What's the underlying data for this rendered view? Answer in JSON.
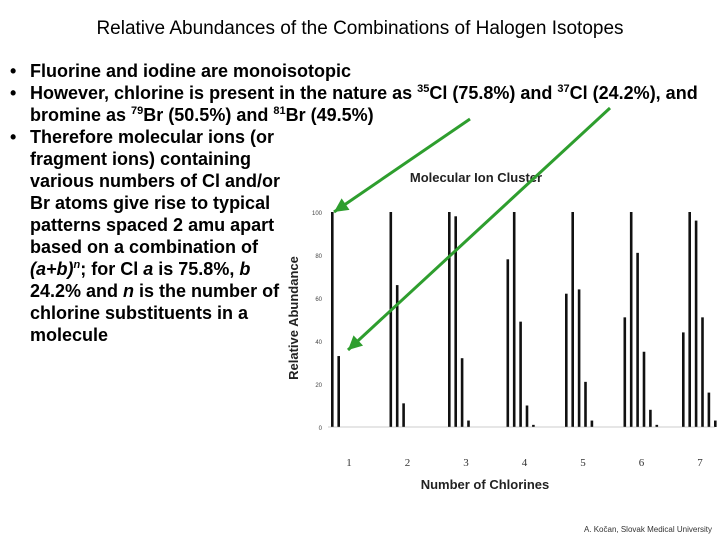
{
  "slide": {
    "title": "Relative Abundances of the Combinations of Halogen Isotopes",
    "bullet1": "Fluorine and iodine are monoisotopic",
    "bullet2_pre": "However, chlorine is present in the nature as ",
    "cl35_mass": "35",
    "cl35_text": "Cl (75.8%) and ",
    "cl37_mass": "37",
    "cl37_text": "Cl (24.2%), and bromine as ",
    "br79_mass": "79",
    "br79_text": "Br (50.5%) and ",
    "br81_mass": "81",
    "br81_text": "Br (49.5%)",
    "bullet3_a": "Therefore molecular ions (or fragment ions) containing various numbers of Cl and/or Br atoms give rise to typical patterns spaced 2 amu apart based on a combination of ",
    "bullet3_formula": "(a+b)",
    "bullet3_exp": "n",
    "bullet3_b": "; for Cl ",
    "var_a": "a",
    "bullet3_c": " is 75.8%, ",
    "var_b": "b",
    "bullet3_d": " 24.2% and ",
    "var_n": "n",
    "bullet3_e": " is the number of chlorine substituents in a molecule",
    "credit": "A. Kočan, Slovak Medical University"
  },
  "colors": {
    "arrow": "#2e9e2e",
    "bars": "#111111"
  },
  "chart_data": {
    "type": "bar",
    "title": "Molecular Ion Cluster",
    "xlabel": "Number of Chlorines",
    "ylabel": "Relative Abundance",
    "ylim": [
      0,
      100
    ],
    "yticks": [
      "0",
      "20",
      "40",
      "60",
      "80",
      "100"
    ],
    "groups": [
      {
        "label": "1",
        "values": [
          100,
          33
        ]
      },
      {
        "label": "2",
        "values": [
          100,
          66,
          11
        ]
      },
      {
        "label": "3",
        "values": [
          100,
          98,
          32,
          3
        ]
      },
      {
        "label": "4",
        "values": [
          78,
          100,
          49,
          10,
          1
        ]
      },
      {
        "label": "5",
        "values": [
          62,
          100,
          64,
          21,
          3
        ]
      },
      {
        "label": "6",
        "values": [
          51,
          100,
          81,
          35,
          8,
          1
        ]
      },
      {
        "label": "7",
        "values": [
          44,
          100,
          96,
          51,
          16,
          3
        ]
      }
    ]
  }
}
